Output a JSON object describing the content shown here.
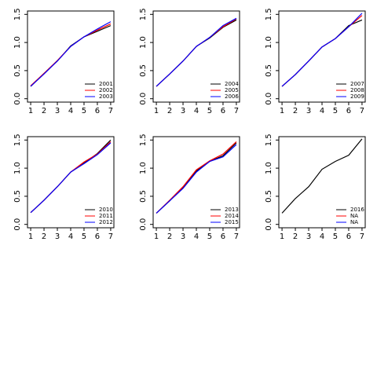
{
  "chart_data": [
    {
      "type": "line",
      "x": [
        1,
        2,
        3,
        4,
        5,
        6,
        7
      ],
      "xlim": [
        0.76,
        7.24
      ],
      "xticks": [
        1,
        2,
        3,
        4,
        5,
        6,
        7
      ],
      "ylim": [
        -0.06,
        1.56
      ],
      "yticks": [
        {
          "value": 0,
          "label": "0.0"
        },
        0.5,
        {
          "value": 1,
          "label": "1.0"
        },
        1.5
      ],
      "legend": "bottomright",
      "series": [
        {
          "name": "2001",
          "color": "#000000",
          "values": [
            0.22,
            0.45,
            0.67,
            0.94,
            1.1,
            1.2,
            1.3
          ]
        },
        {
          "name": "2002",
          "color": "#ff0000",
          "values": [
            0.23,
            0.45,
            0.68,
            0.93,
            1.1,
            1.22,
            1.33
          ]
        },
        {
          "name": "2003",
          "color": "#0000ff",
          "values": [
            0.22,
            0.44,
            0.67,
            0.93,
            1.1,
            1.24,
            1.37
          ]
        }
      ]
    },
    {
      "type": "line",
      "x": [
        1,
        2,
        3,
        4,
        5,
        6,
        7
      ],
      "xlim": [
        0.76,
        7.24
      ],
      "xticks": [
        1,
        2,
        3,
        4,
        5,
        6,
        7
      ],
      "ylim": [
        -0.06,
        1.56
      ],
      "yticks": [
        {
          "value": 0,
          "label": "0.0"
        },
        0.5,
        {
          "value": 1,
          "label": "1.0"
        },
        1.5
      ],
      "legend": "bottomright",
      "series": [
        {
          "name": "2004",
          "color": "#000000",
          "values": [
            0.22,
            0.44,
            0.67,
            0.93,
            1.08,
            1.27,
            1.4
          ]
        },
        {
          "name": "2005",
          "color": "#ff0000",
          "values": [
            0.22,
            0.44,
            0.67,
            0.93,
            1.09,
            1.28,
            1.42
          ]
        },
        {
          "name": "2006",
          "color": "#0000ff",
          "values": [
            0.22,
            0.44,
            0.67,
            0.93,
            1.09,
            1.3,
            1.43
          ]
        }
      ]
    },
    {
      "type": "line",
      "x": [
        1,
        2,
        3,
        4,
        5,
        6,
        7
      ],
      "xlim": [
        0.76,
        7.24
      ],
      "xticks": [
        1,
        2,
        3,
        4,
        5,
        6,
        7
      ],
      "ylim": [
        -0.06,
        1.56
      ],
      "yticks": [
        {
          "value": 0,
          "label": "0.0"
        },
        0.5,
        {
          "value": 1,
          "label": "1.0"
        },
        1.5
      ],
      "legend": "bottomright",
      "series": [
        {
          "name": "2007",
          "color": "#000000",
          "values": [
            0.22,
            0.43,
            0.67,
            0.92,
            1.07,
            1.3,
            1.4
          ]
        },
        {
          "name": "2008",
          "color": "#ff0000",
          "values": [
            0.22,
            0.43,
            0.67,
            0.92,
            1.07,
            1.28,
            1.48
          ]
        },
        {
          "name": "2009",
          "color": "#0000ff",
          "values": [
            0.22,
            0.43,
            0.67,
            0.92,
            1.07,
            1.28,
            1.52
          ]
        }
      ]
    },
    {
      "type": "line",
      "x": [
        1,
        2,
        3,
        4,
        5,
        6,
        7
      ],
      "xlim": [
        0.76,
        7.24
      ],
      "xticks": [
        1,
        2,
        3,
        4,
        5,
        6,
        7
      ],
      "ylim": [
        -0.06,
        1.56
      ],
      "yticks": [
        {
          "value": 0,
          "label": "0.0"
        },
        0.5,
        {
          "value": 1,
          "label": "1.0"
        },
        1.5
      ],
      "legend": "bottomright",
      "series": [
        {
          "name": "2010",
          "color": "#000000",
          "values": [
            0.21,
            0.43,
            0.67,
            0.93,
            1.09,
            1.26,
            1.5
          ]
        },
        {
          "name": "2011",
          "color": "#ff0000",
          "values": [
            0.21,
            0.43,
            0.67,
            0.93,
            1.11,
            1.25,
            1.47
          ]
        },
        {
          "name": "2012",
          "color": "#0000ff",
          "values": [
            0.21,
            0.43,
            0.67,
            0.93,
            1.08,
            1.24,
            1.45
          ]
        }
      ]
    },
    {
      "type": "line",
      "x": [
        1,
        2,
        3,
        4,
        5,
        6,
        7
      ],
      "xlim": [
        0.76,
        7.24
      ],
      "xticks": [
        1,
        2,
        3,
        4,
        5,
        6,
        7
      ],
      "ylim": [
        -0.06,
        1.56
      ],
      "yticks": [
        {
          "value": 0,
          "label": "0.0"
        },
        0.5,
        {
          "value": 1,
          "label": "1.0"
        },
        1.5
      ],
      "legend": "bottomright",
      "series": [
        {
          "name": "2013",
          "color": "#000000",
          "values": [
            0.2,
            0.42,
            0.65,
            0.95,
            1.12,
            1.22,
            1.45
          ]
        },
        {
          "name": "2014",
          "color": "#ff0000",
          "values": [
            0.2,
            0.43,
            0.67,
            0.97,
            1.13,
            1.25,
            1.47
          ]
        },
        {
          "name": "2015",
          "color": "#0000ff",
          "values": [
            0.2,
            0.42,
            0.64,
            0.93,
            1.12,
            1.2,
            1.42
          ]
        }
      ]
    },
    {
      "type": "line",
      "x": [
        1,
        2,
        3,
        4,
        5,
        6,
        7
      ],
      "xlim": [
        0.76,
        7.24
      ],
      "xticks": [
        1,
        2,
        3,
        4,
        5,
        6,
        7
      ],
      "ylim": [
        -0.06,
        1.56
      ],
      "yticks": [
        {
          "value": 0,
          "label": "0.0"
        },
        0.5,
        {
          "value": 1,
          "label": "1.0"
        },
        1.5
      ],
      "legend": "bottomright",
      "series": [
        {
          "name": "2016",
          "color": "#000000",
          "values": [
            0.2,
            0.46,
            0.67,
            0.98,
            1.12,
            1.23,
            1.52
          ]
        },
        {
          "name": "NA",
          "color": "#ff0000",
          "values": [
            null,
            null,
            null,
            null,
            null,
            null,
            null
          ]
        },
        {
          "name": "NA",
          "color": "#0000ff",
          "values": [
            null,
            null,
            null,
            null,
            null,
            null,
            null
          ]
        }
      ]
    }
  ]
}
